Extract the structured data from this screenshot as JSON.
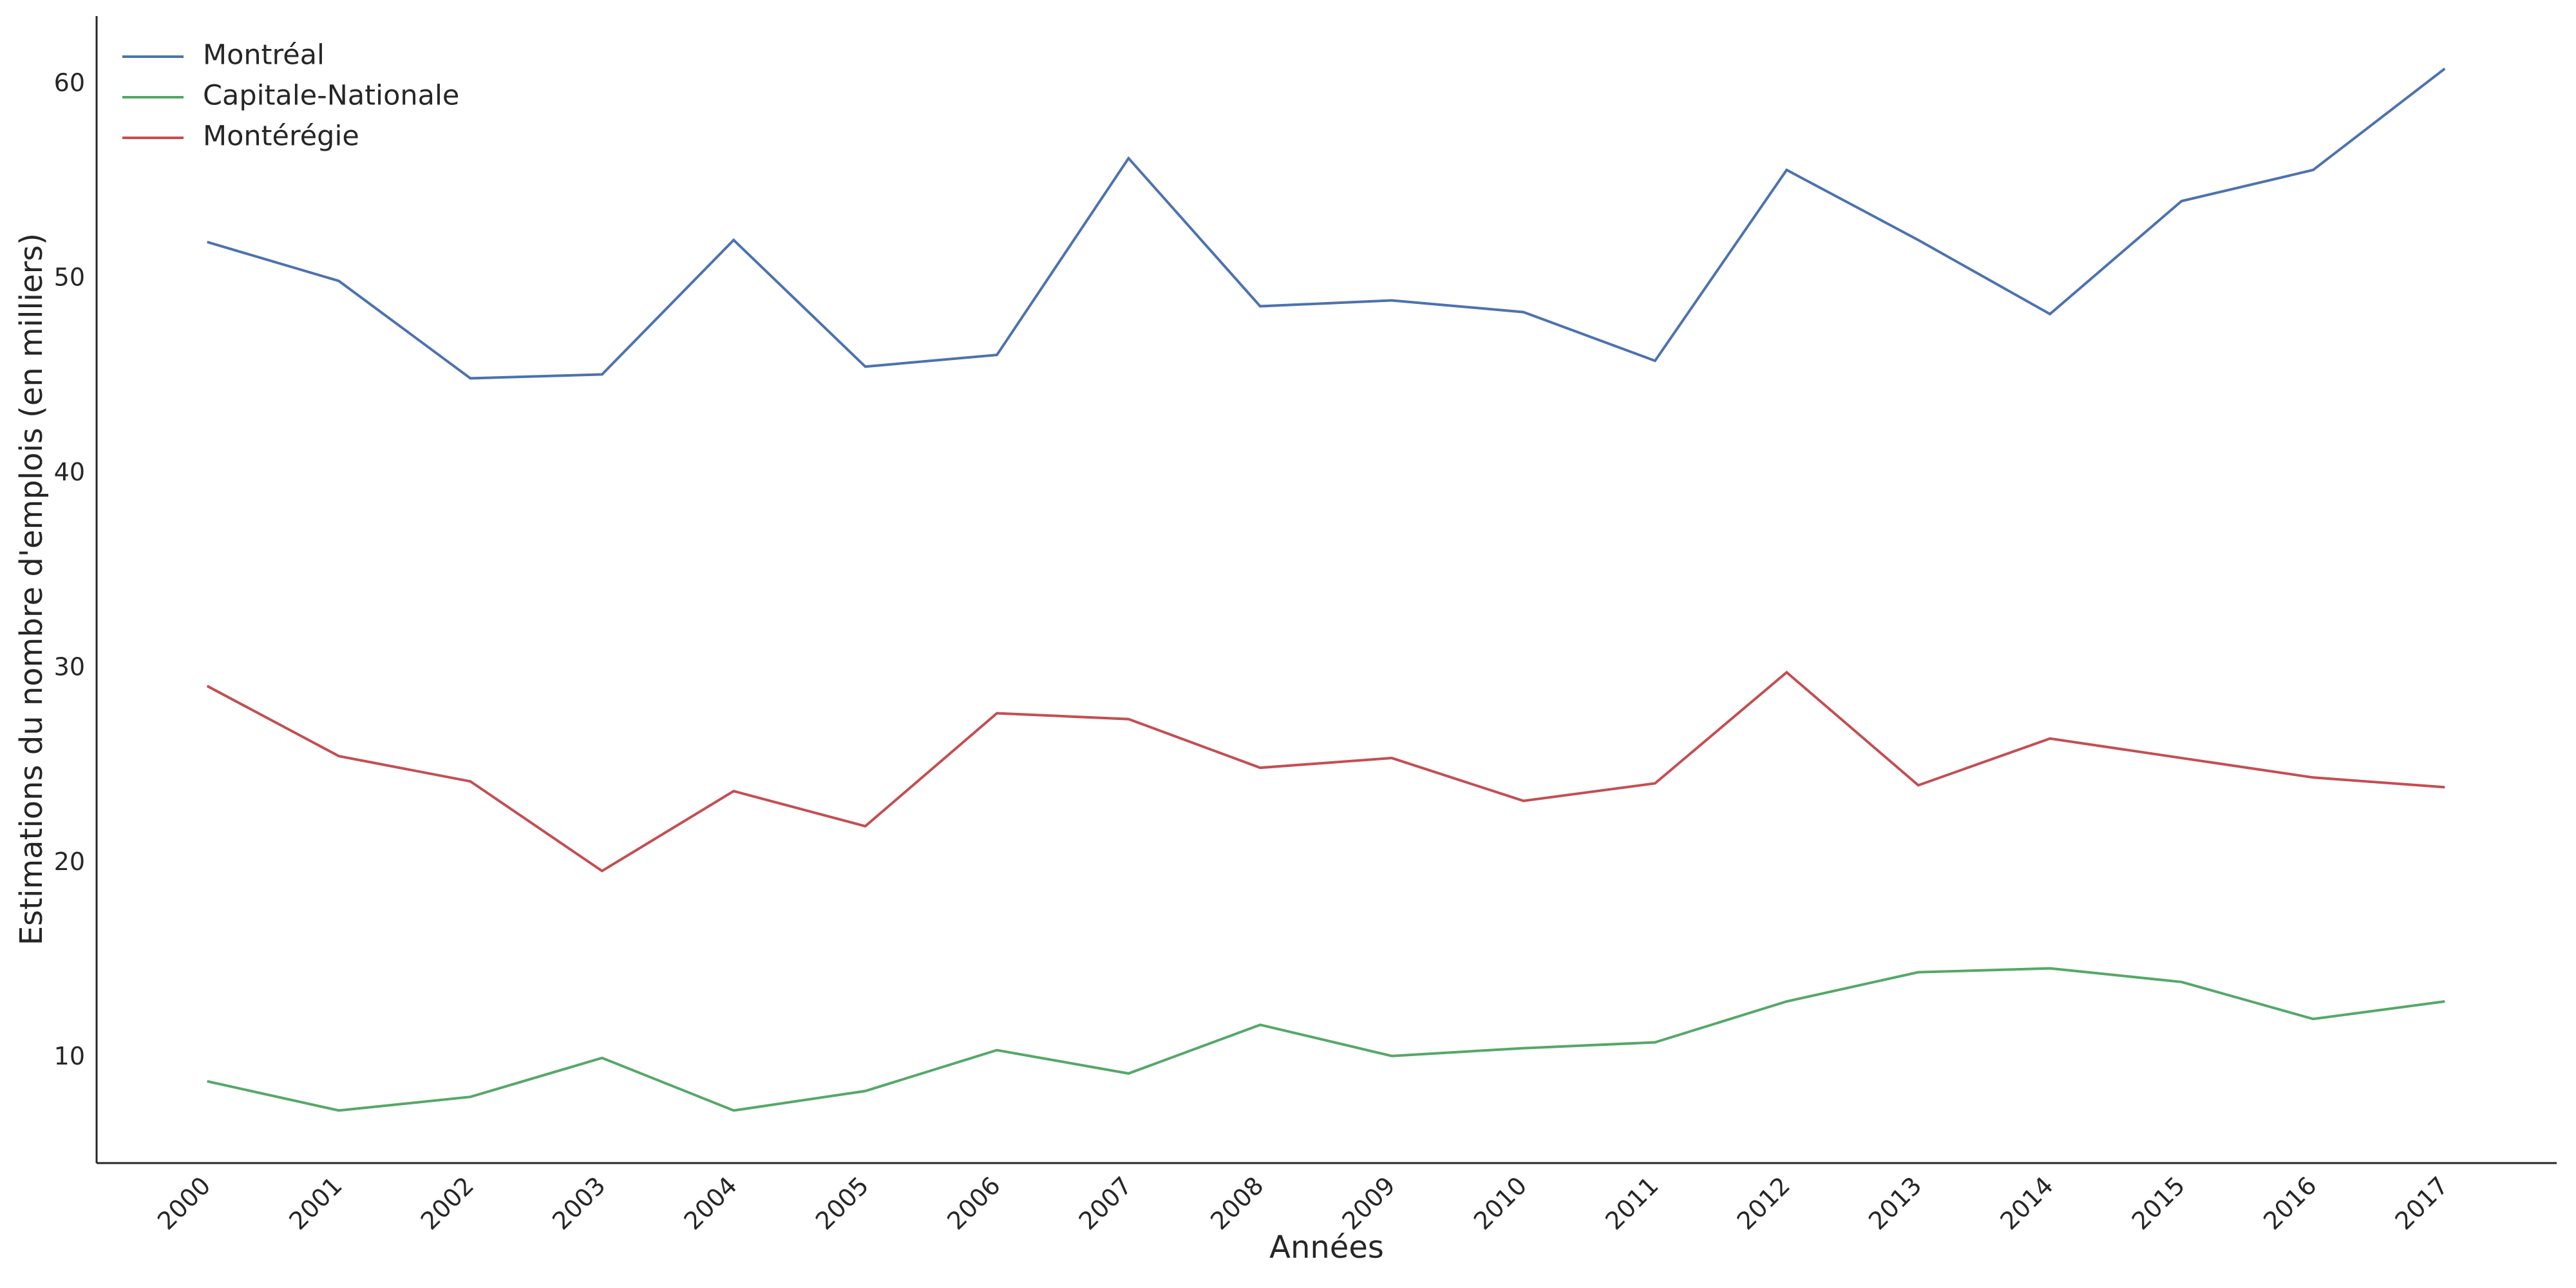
{
  "chart_data": {
    "type": "line",
    "xlabel": "Années",
    "ylabel": "Estimations du nombre d'emplois (en milliers)",
    "x": [
      2000,
      2001,
      2002,
      2003,
      2004,
      2005,
      2006,
      2007,
      2008,
      2009,
      2010,
      2011,
      2012,
      2013,
      2014,
      2015,
      2016,
      2017
    ],
    "xlim": [
      1999.16,
      2017.85
    ],
    "xticks": [
      2000,
      2001,
      2002,
      2003,
      2004,
      2005,
      2006,
      2007,
      2008,
      2009,
      2010,
      2011,
      2012,
      2013,
      2014,
      2015,
      2016,
      2017
    ],
    "ylim": [
      4.6,
      63.5
    ],
    "yticks": [
      10,
      20,
      30,
      40,
      50,
      60
    ],
    "grid": false,
    "legend": "upper-left",
    "series": [
      {
        "name": "Montréal",
        "color": "#4c72b0",
        "values": [
          51.9,
          49.9,
          44.9,
          45.1,
          52.0,
          45.5,
          46.1,
          56.2,
          48.6,
          48.9,
          48.3,
          45.8,
          55.6,
          52.0,
          48.2,
          54.0,
          55.6,
          60.8
        ]
      },
      {
        "name": "Capitale-Nationale",
        "color": "#55a868",
        "values": [
          8.8,
          7.3,
          8.0,
          10.0,
          7.3,
          8.3,
          10.4,
          9.2,
          11.7,
          10.1,
          10.5,
          10.8,
          12.9,
          14.4,
          14.6,
          13.9,
          12.0,
          12.9
        ]
      },
      {
        "name": "Montérégie",
        "color": "#c44e52",
        "values": [
          29.1,
          25.5,
          24.2,
          19.6,
          23.7,
          21.9,
          27.7,
          27.4,
          24.9,
          25.4,
          23.2,
          24.1,
          29.8,
          24.0,
          26.4,
          25.4,
          24.4,
          23.9
        ]
      }
    ]
  }
}
